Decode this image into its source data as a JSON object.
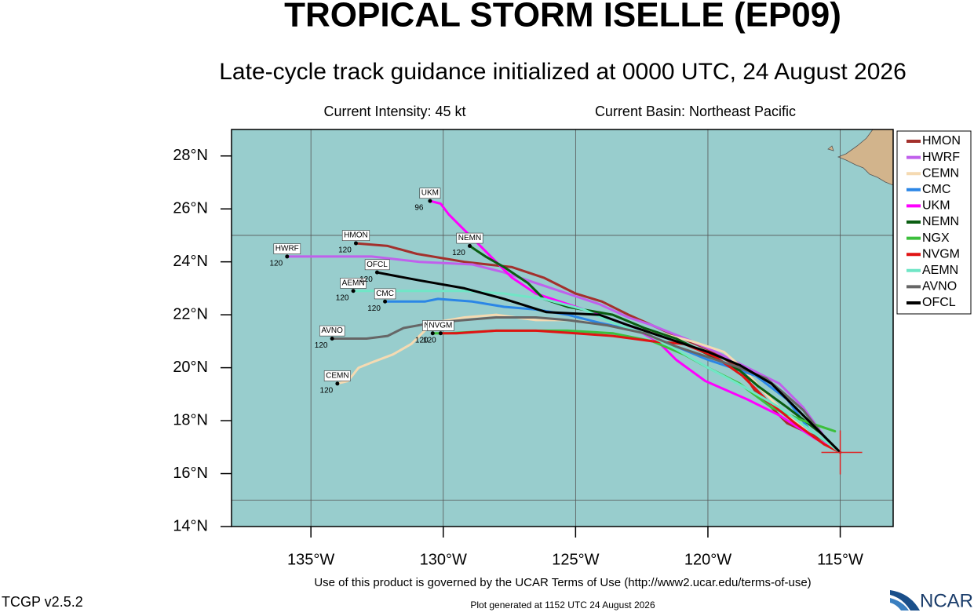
{
  "chart_data": {
    "type": "track",
    "title": "TROPICAL STORM ISELLE (EP09)",
    "subtitle": "Late-cycle track guidance initialized at 0000 UTC, 24 August 2026",
    "info_left": "Current Intensity: 45 kt",
    "info_right": "Current Basin: Northeast Pacific",
    "footer": "Use of this product is governed by the UCAR Terms of Use (http://www2.ucar.edu/terms-of-use)",
    "version": "TCGP v2.5.2",
    "generated": "Plot generated at 1152 UTC   24 August 2026",
    "logo": "NCAR",
    "xlim": [
      -138,
      -113
    ],
    "ylim": [
      14,
      29
    ],
    "xticks": [
      {
        "value": -135,
        "label": "135°W"
      },
      {
        "value": -130,
        "label": "130°W"
      },
      {
        "value": -125,
        "label": "125°W"
      },
      {
        "value": -120,
        "label": "120°W"
      },
      {
        "value": -115,
        "label": "115°W"
      }
    ],
    "yticks": [
      {
        "value": 14,
        "label": "14°N"
      },
      {
        "value": 16,
        "label": "16°N"
      },
      {
        "value": 18,
        "label": "18°N"
      },
      {
        "value": 20,
        "label": "20°N"
      },
      {
        "value": 22,
        "label": "22°N"
      },
      {
        "value": 24,
        "label": "24°N"
      },
      {
        "value": 26,
        "label": "26°N"
      },
      {
        "value": 28,
        "label": "28°N"
      }
    ],
    "ygrid": [
      15,
      25
    ],
    "ocean_color": "#98cdcd",
    "storm_position": {
      "lon": -115.0,
      "lat": 16.8,
      "color": "#e02020"
    },
    "series": [
      {
        "name": "HMON",
        "color": "#a3302c",
        "end_hour": 120,
        "lon": [
          -115.0,
          -115.7,
          -117.0,
          -118.2,
          -118.8,
          -120.0,
          -121.2,
          -123.0,
          -124.0,
          -125.0,
          -126.2,
          -127.4,
          -129.2,
          -131.0,
          -132.1,
          -133.3
        ],
        "lat": [
          16.8,
          17.3,
          17.9,
          19.1,
          20.0,
          20.7,
          21.2,
          22.0,
          22.5,
          22.8,
          23.4,
          23.8,
          24.0,
          24.3,
          24.6,
          24.7
        ]
      },
      {
        "name": "HWRF",
        "color": "#c060ec",
        "end_hour": 120,
        "lon": [
          -115.0,
          -115.6,
          -116.4,
          -117.3,
          -118.5,
          -119.7,
          -120.6,
          -122.1,
          -123.0,
          -124.1,
          -125.9,
          -127.7,
          -128.9,
          -130.9,
          -132.7,
          -134.2,
          -135.9
        ],
        "lat": [
          16.8,
          17.4,
          18.5,
          19.4,
          20.0,
          20.6,
          21.0,
          21.6,
          21.9,
          22.4,
          23.0,
          23.6,
          23.9,
          24.0,
          24.2,
          24.2,
          24.2
        ]
      },
      {
        "name": "CEMN",
        "color": "#f5dab2",
        "end_hour": 120,
        "lon": [
          -115.0,
          -115.9,
          -117.0,
          -117.9,
          -118.7,
          -119.4,
          -120.6,
          -121.8,
          -123.6,
          -125.3,
          -126.5,
          -128.0,
          -129.2,
          -130.4,
          -131.2,
          -131.9,
          -132.7,
          -133.2,
          -133.6,
          -134.0
        ],
        "lat": [
          16.8,
          17.3,
          18.2,
          19.1,
          20.0,
          20.6,
          21.0,
          21.3,
          21.6,
          21.8,
          21.8,
          22.0,
          21.9,
          21.7,
          20.9,
          20.5,
          20.2,
          20.0,
          19.5,
          19.4
        ]
      },
      {
        "name": "CMC",
        "color": "#2b86e6",
        "end_hour": 120,
        "lon": [
          -115.0,
          -116.2,
          -117.0,
          -118.2,
          -120.0,
          -121.2,
          -122.7,
          -124.1,
          -125.3,
          -126.5,
          -127.7,
          -128.9,
          -130.2,
          -130.7,
          -131.2,
          -132.2
        ],
        "lat": [
          16.8,
          17.7,
          18.8,
          19.7,
          20.3,
          20.8,
          21.4,
          21.7,
          22.0,
          22.2,
          22.3,
          22.5,
          22.6,
          22.5,
          22.5,
          22.5
        ]
      },
      {
        "name": "UKM",
        "color": "#ff00ff",
        "end_hour": 96,
        "lon": [
          -115.0,
          -115.9,
          -117.3,
          -118.5,
          -120.1,
          -121.2,
          -121.9,
          -123.0,
          -124.1,
          -125.3,
          -126.5,
          -127.4,
          -128.1,
          -128.6,
          -129.0,
          -129.5,
          -129.8,
          -130.1,
          -130.5
        ],
        "lat": [
          16.8,
          17.3,
          18.2,
          18.8,
          19.5,
          20.3,
          21.0,
          21.6,
          22.0,
          22.4,
          22.8,
          23.4,
          24.1,
          24.6,
          25.0,
          25.5,
          25.8,
          26.2,
          26.3
        ]
      },
      {
        "name": "NEMN",
        "color": "#0a5e12",
        "end_hour": 120,
        "lon": [
          -115.0,
          -115.7,
          -117.0,
          -118.1,
          -118.8,
          -120.0,
          -121.2,
          -122.4,
          -123.6,
          -125.3,
          -126.2,
          -126.8,
          -127.7,
          -128.4,
          -128.7,
          -129.0
        ],
        "lat": [
          16.8,
          17.5,
          18.5,
          19.3,
          19.9,
          20.5,
          21.1,
          21.5,
          22.0,
          22.3,
          22.6,
          23.2,
          23.8,
          24.2,
          24.4,
          24.6
        ]
      },
      {
        "name": "NGX",
        "color": "#3cbf3c",
        "end_hour": 120,
        "lon": [
          -115.2,
          -116.4,
          -117.6,
          -118.8,
          -120.0,
          -120.9,
          -122.1,
          -123.6,
          -125.3,
          -126.5,
          -128.0,
          -129.8,
          -130.4
        ],
        "lat": [
          17.6,
          18.0,
          18.5,
          19.4,
          20.0,
          20.5,
          21.0,
          21.3,
          21.4,
          21.4,
          21.4,
          21.3,
          21.3
        ]
      },
      {
        "name": "NVGM",
        "color": "#e01414",
        "end_hour": 120,
        "lon": [
          -115.0,
          -115.6,
          -116.7,
          -117.8,
          -118.7,
          -119.7,
          -120.9,
          -122.1,
          -123.6,
          -125.0,
          -126.5,
          -128.0,
          -129.5,
          -130.1
        ],
        "lat": [
          16.8,
          17.1,
          17.9,
          18.8,
          19.7,
          20.4,
          20.9,
          21.0,
          21.2,
          21.3,
          21.4,
          21.4,
          21.3,
          21.3
        ]
      },
      {
        "name": "AEMN",
        "color": "#70e6c6",
        "end_hour": 120,
        "lon": [
          -115.0,
          -116.2,
          -117.3,
          -118.5,
          -120.0,
          -121.2,
          -122.4,
          -123.6,
          -124.7,
          -126.2,
          -127.7,
          -129.2,
          -130.9,
          -132.4,
          -133.4
        ],
        "lat": [
          16.8,
          17.7,
          18.5,
          19.2,
          20.0,
          20.7,
          21.3,
          21.7,
          22.2,
          22.6,
          22.8,
          22.9,
          22.9,
          22.9,
          22.9
        ]
      },
      {
        "name": "AVNO",
        "color": "#666666",
        "end_hour": 120,
        "lon": [
          -115.0,
          -115.7,
          -116.4,
          -117.2,
          -117.8,
          -118.8,
          -120.0,
          -121.2,
          -122.4,
          -123.8,
          -125.3,
          -126.5,
          -128.0,
          -129.2,
          -130.4,
          -131.5,
          -132.1,
          -132.9,
          -134.2
        ],
        "lat": [
          16.8,
          17.5,
          18.4,
          19.1,
          19.6,
          20.0,
          20.4,
          20.8,
          21.3,
          21.6,
          21.8,
          21.9,
          21.9,
          21.8,
          21.7,
          21.5,
          21.2,
          21.1,
          21.1
        ]
      },
      {
        "name": "OFCL",
        "color": "#000000",
        "end_hour": 120,
        "lon": [
          -115.0,
          -116.4,
          -117.6,
          -118.8,
          -120.0,
          -121.2,
          -123.0,
          -124.1,
          -126.1,
          -127.7,
          -129.2,
          -130.9,
          -132.5
        ],
        "lat": [
          16.8,
          18.2,
          19.4,
          20.1,
          20.6,
          21.0,
          21.6,
          22.0,
          22.1,
          22.6,
          23.0,
          23.3,
          23.6
        ]
      }
    ]
  }
}
